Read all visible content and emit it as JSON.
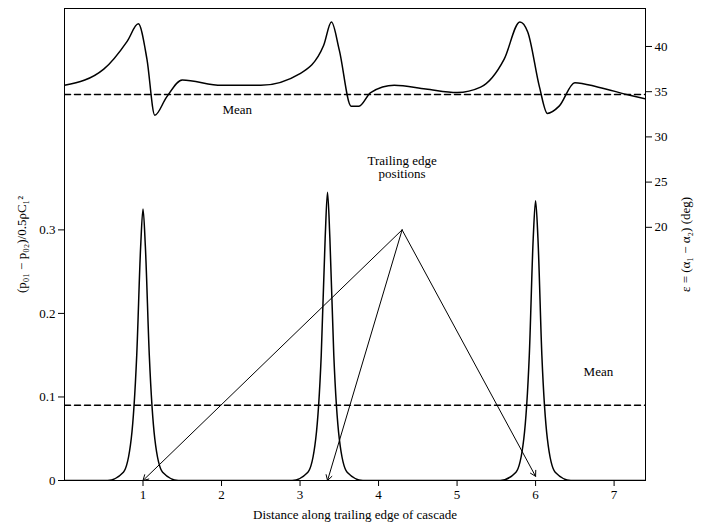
{
  "chart_data": {
    "type": "line",
    "xlabel": "Distance along trailing edge of cascade",
    "ylabel": "(p₀₁ − p₀₂)/0.5ρC₁²",
    "y2label": "ε = (α₁ − α₂) (deg)",
    "xlim": [
      0,
      7.4
    ],
    "xticks": [
      1,
      2,
      3,
      4,
      5,
      6,
      7
    ],
    "ylim": [
      0,
      0.565
    ],
    "yticks": [
      0,
      0.1,
      0.2,
      0.3
    ],
    "y2lim": [
      -8,
      44.2
    ],
    "y2ticks": [
      20,
      25,
      30,
      35,
      40
    ],
    "series": [
      {
        "axis": "y2",
        "color": "#000000",
        "line_style": "solid",
        "x": [
          0,
          0.5,
          0.8,
          0.94,
          1.05,
          1.15,
          1.3,
          1.5,
          2,
          2.5,
          3.0,
          3.3,
          3.4,
          3.5,
          3.65,
          3.75,
          3.9,
          4.2,
          4.6,
          5.0,
          5.3,
          5.6,
          5.8,
          5.9,
          6.05,
          6.15,
          6.3,
          6.5,
          6.8,
          7.2,
          7.4
        ],
        "values": [
          35.7,
          37.5,
          40.6,
          42.5,
          38.6,
          32.4,
          34.4,
          36.3,
          35.7,
          35.7,
          37.0,
          40.1,
          42.7,
          39.6,
          33.4,
          33.4,
          34.9,
          35.7,
          35.3,
          34.9,
          35.5,
          38.6,
          42.7,
          41.6,
          35.5,
          32.6,
          33.4,
          36.0,
          35.5,
          34.6,
          34.2
        ]
      },
      {
        "color": "#000000",
        "line_style": "solid",
        "x": [
          0,
          0.55,
          0.75,
          0.85,
          0.92,
          0.97,
          1.0,
          1.03,
          1.08,
          1.15,
          1.25,
          1.45,
          2.9,
          3.1,
          3.2,
          3.27,
          3.32,
          3.35,
          3.38,
          3.43,
          3.5,
          3.6,
          3.8,
          5.55,
          5.75,
          5.85,
          5.92,
          5.97,
          6.0,
          6.03,
          6.08,
          6.15,
          6.25,
          6.45,
          7.4
        ],
        "values": [
          0,
          0,
          0.01,
          0.05,
          0.15,
          0.28,
          0.325,
          0.28,
          0.15,
          0.05,
          0.01,
          0,
          0,
          0.01,
          0.05,
          0.15,
          0.29,
          0.345,
          0.29,
          0.15,
          0.05,
          0.01,
          0,
          0,
          0.01,
          0.05,
          0.15,
          0.29,
          0.335,
          0.29,
          0.15,
          0.05,
          0.01,
          0,
          0
        ]
      },
      {
        "axis": "y2",
        "color": "#000000",
        "line_style": "dashed",
        "x": [
          0,
          7.4
        ],
        "values": [
          34.7,
          34.7
        ]
      },
      {
        "color": "#000000",
        "line_style": "dashed",
        "x": [
          0,
          7.4
        ],
        "values": [
          0.09,
          0.09
        ]
      }
    ],
    "annotations": [
      {
        "text": "Mean",
        "x": 2.2,
        "y": 33.0,
        "axis": "y2"
      },
      {
        "text": "Mean",
        "x": 6.8,
        "y": 0.13
      },
      {
        "text": "Trailing edge\npositions",
        "x": 4.3,
        "y": 0.375,
        "arrows": [
          {
            "x1": 4.3,
            "y1": 0.3,
            "x2": 1.0,
            "y2": 0
          },
          {
            "x1": 4.3,
            "y1": 0.3,
            "x2": 3.35,
            "y2": 0
          },
          {
            "x1": 4.3,
            "y1": 0.3,
            "x2": 6.0,
            "y2": 0.005
          }
        ]
      }
    ]
  }
}
